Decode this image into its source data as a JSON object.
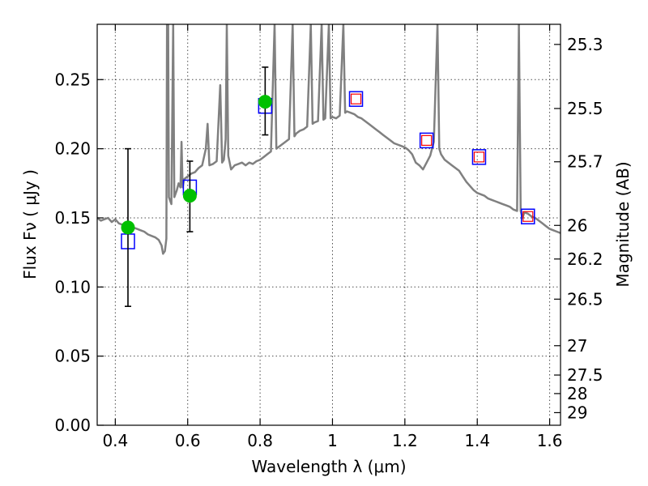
{
  "chart_data": {
    "type": "scatter",
    "title": "",
    "xlabel": "Wavelength  λ (μm)",
    "ylabel": "Flux  Fν  ( μJy )",
    "y2label": "Magnitude (AB)",
    "xlim": [
      0.35,
      1.63
    ],
    "ylim": [
      0.0,
      0.29
    ],
    "grid": true,
    "x_ticks": [
      0.4,
      0.6,
      0.8,
      1.0,
      1.2,
      1.4,
      1.6
    ],
    "x_tick_labels": [
      "0.4",
      "0.6",
      "0.8",
      "1",
      "1.2",
      "1.4",
      "1.6"
    ],
    "y_ticks": [
      0.0,
      0.05,
      0.1,
      0.15,
      0.2,
      0.25
    ],
    "y_tick_labels": [
      "0.00",
      "0.05",
      "0.10",
      "0.15",
      "0.20",
      "0.25"
    ],
    "mag_ticks": [
      25.3,
      25.5,
      25.7,
      26,
      26.2,
      26.5,
      27,
      27.5,
      28,
      29
    ],
    "mag_tick_labels": [
      "25.3",
      "25.5",
      "25.7",
      "26",
      "26.2",
      "26.5",
      "27",
      "27.5",
      "28",
      "29"
    ],
    "colors": {
      "model": "#808080",
      "observed": "#00c000",
      "model_phot": "#0000ff",
      "model_phot_inner": "#ff0000",
      "errorbar": "#000000"
    },
    "observed_points": [
      {
        "x": 0.435,
        "y": 0.143,
        "y_low": 0.086,
        "y_high": 0.2
      },
      {
        "x": 0.606,
        "y": 0.166,
        "y_low": 0.14,
        "y_high": 0.191
      },
      {
        "x": 0.814,
        "y": 0.234,
        "y_low": 0.21,
        "y_high": 0.259
      }
    ],
    "model_photometry": [
      {
        "x": 0.435,
        "y": 0.133,
        "inner": false
      },
      {
        "x": 0.606,
        "y": 0.172,
        "inner": false
      },
      {
        "x": 0.814,
        "y": 0.231,
        "inner": false
      },
      {
        "x": 1.065,
        "y": 0.236,
        "inner": true
      },
      {
        "x": 1.26,
        "y": 0.206,
        "inner": true
      },
      {
        "x": 1.405,
        "y": 0.194,
        "inner": true
      },
      {
        "x": 1.54,
        "y": 0.151,
        "inner": true
      }
    ],
    "model_spectrum": [
      [
        0.35,
        0.15
      ],
      [
        0.36,
        0.148
      ],
      [
        0.37,
        0.149
      ],
      [
        0.38,
        0.15
      ],
      [
        0.39,
        0.147
      ],
      [
        0.4,
        0.149
      ],
      [
        0.41,
        0.146
      ],
      [
        0.42,
        0.145
      ],
      [
        0.43,
        0.144
      ],
      [
        0.44,
        0.145
      ],
      [
        0.45,
        0.143
      ],
      [
        0.46,
        0.142
      ],
      [
        0.47,
        0.141
      ],
      [
        0.48,
        0.14
      ],
      [
        0.49,
        0.138
      ],
      [
        0.5,
        0.137
      ],
      [
        0.51,
        0.136
      ],
      [
        0.52,
        0.134
      ],
      [
        0.528,
        0.13
      ],
      [
        0.532,
        0.124
      ],
      [
        0.537,
        0.126
      ],
      [
        0.541,
        0.135
      ],
      [
        0.543,
        0.29
      ],
      [
        0.546,
        0.29
      ],
      [
        0.548,
        0.165
      ],
      [
        0.555,
        0.16
      ],
      [
        0.56,
        0.29
      ],
      [
        0.563,
        0.165
      ],
      [
        0.57,
        0.17
      ],
      [
        0.575,
        0.175
      ],
      [
        0.58,
        0.172
      ],
      [
        0.583,
        0.205
      ],
      [
        0.586,
        0.172
      ],
      [
        0.59,
        0.178
      ],
      [
        0.6,
        0.18
      ],
      [
        0.61,
        0.182
      ],
      [
        0.62,
        0.183
      ],
      [
        0.63,
        0.186
      ],
      [
        0.64,
        0.188
      ],
      [
        0.65,
        0.2
      ],
      [
        0.655,
        0.218
      ],
      [
        0.66,
        0.188
      ],
      [
        0.67,
        0.189
      ],
      [
        0.68,
        0.191
      ],
      [
        0.69,
        0.246
      ],
      [
        0.695,
        0.19
      ],
      [
        0.7,
        0.192
      ],
      [
        0.705,
        0.207
      ],
      [
        0.708,
        0.29
      ],
      [
        0.712,
        0.195
      ],
      [
        0.72,
        0.185
      ],
      [
        0.73,
        0.188
      ],
      [
        0.74,
        0.189
      ],
      [
        0.75,
        0.19
      ],
      [
        0.76,
        0.188
      ],
      [
        0.77,
        0.19
      ],
      [
        0.78,
        0.189
      ],
      [
        0.79,
        0.191
      ],
      [
        0.8,
        0.192
      ],
      [
        0.81,
        0.194
      ],
      [
        0.82,
        0.196
      ],
      [
        0.83,
        0.198
      ],
      [
        0.84,
        0.29
      ],
      [
        0.845,
        0.2
      ],
      [
        0.85,
        0.201
      ],
      [
        0.86,
        0.203
      ],
      [
        0.87,
        0.205
      ],
      [
        0.88,
        0.207
      ],
      [
        0.89,
        0.29
      ],
      [
        0.895,
        0.209
      ],
      [
        0.9,
        0.211
      ],
      [
        0.91,
        0.213
      ],
      [
        0.92,
        0.214
      ],
      [
        0.93,
        0.216
      ],
      [
        0.94,
        0.29
      ],
      [
        0.945,
        0.218
      ],
      [
        0.95,
        0.219
      ],
      [
        0.96,
        0.22
      ],
      [
        0.97,
        0.29
      ],
      [
        0.975,
        0.221
      ],
      [
        0.98,
        0.222
      ],
      [
        0.99,
        0.29
      ],
      [
        0.995,
        0.222
      ],
      [
        1.0,
        0.223
      ],
      [
        1.01,
        0.222
      ],
      [
        1.02,
        0.224
      ],
      [
        1.03,
        0.29
      ],
      [
        1.035,
        0.226
      ],
      [
        1.04,
        0.227
      ],
      [
        1.05,
        0.226
      ],
      [
        1.06,
        0.225
      ],
      [
        1.07,
        0.223
      ],
      [
        1.08,
        0.222
      ],
      [
        1.09,
        0.22
      ],
      [
        1.1,
        0.218
      ],
      [
        1.11,
        0.216
      ],
      [
        1.12,
        0.214
      ],
      [
        1.13,
        0.212
      ],
      [
        1.14,
        0.21
      ],
      [
        1.15,
        0.208
      ],
      [
        1.16,
        0.206
      ],
      [
        1.17,
        0.204
      ],
      [
        1.18,
        0.203
      ],
      [
        1.19,
        0.202
      ],
      [
        1.2,
        0.201
      ],
      [
        1.21,
        0.199
      ],
      [
        1.22,
        0.196
      ],
      [
        1.23,
        0.19
      ],
      [
        1.24,
        0.188
      ],
      [
        1.25,
        0.185
      ],
      [
        1.26,
        0.19
      ],
      [
        1.27,
        0.195
      ],
      [
        1.28,
        0.205
      ],
      [
        1.29,
        0.29
      ],
      [
        1.295,
        0.2
      ],
      [
        1.3,
        0.196
      ],
      [
        1.31,
        0.192
      ],
      [
        1.32,
        0.19
      ],
      [
        1.33,
        0.188
      ],
      [
        1.34,
        0.186
      ],
      [
        1.35,
        0.184
      ],
      [
        1.36,
        0.18
      ],
      [
        1.37,
        0.176
      ],
      [
        1.38,
        0.173
      ],
      [
        1.39,
        0.17
      ],
      [
        1.4,
        0.168
      ],
      [
        1.41,
        0.167
      ],
      [
        1.42,
        0.166
      ],
      [
        1.43,
        0.164
      ],
      [
        1.44,
        0.163
      ],
      [
        1.45,
        0.162
      ],
      [
        1.46,
        0.161
      ],
      [
        1.47,
        0.16
      ],
      [
        1.48,
        0.159
      ],
      [
        1.49,
        0.158
      ],
      [
        1.5,
        0.156
      ],
      [
        1.51,
        0.155
      ],
      [
        1.515,
        0.29
      ],
      [
        1.52,
        0.155
      ],
      [
        1.525,
        0.15
      ],
      [
        1.53,
        0.154
      ],
      [
        1.54,
        0.153
      ],
      [
        1.55,
        0.151
      ],
      [
        1.56,
        0.15
      ],
      [
        1.57,
        0.148
      ],
      [
        1.58,
        0.146
      ],
      [
        1.59,
        0.144
      ],
      [
        1.6,
        0.142
      ],
      [
        1.61,
        0.141
      ],
      [
        1.62,
        0.14
      ],
      [
        1.63,
        0.139
      ]
    ]
  }
}
